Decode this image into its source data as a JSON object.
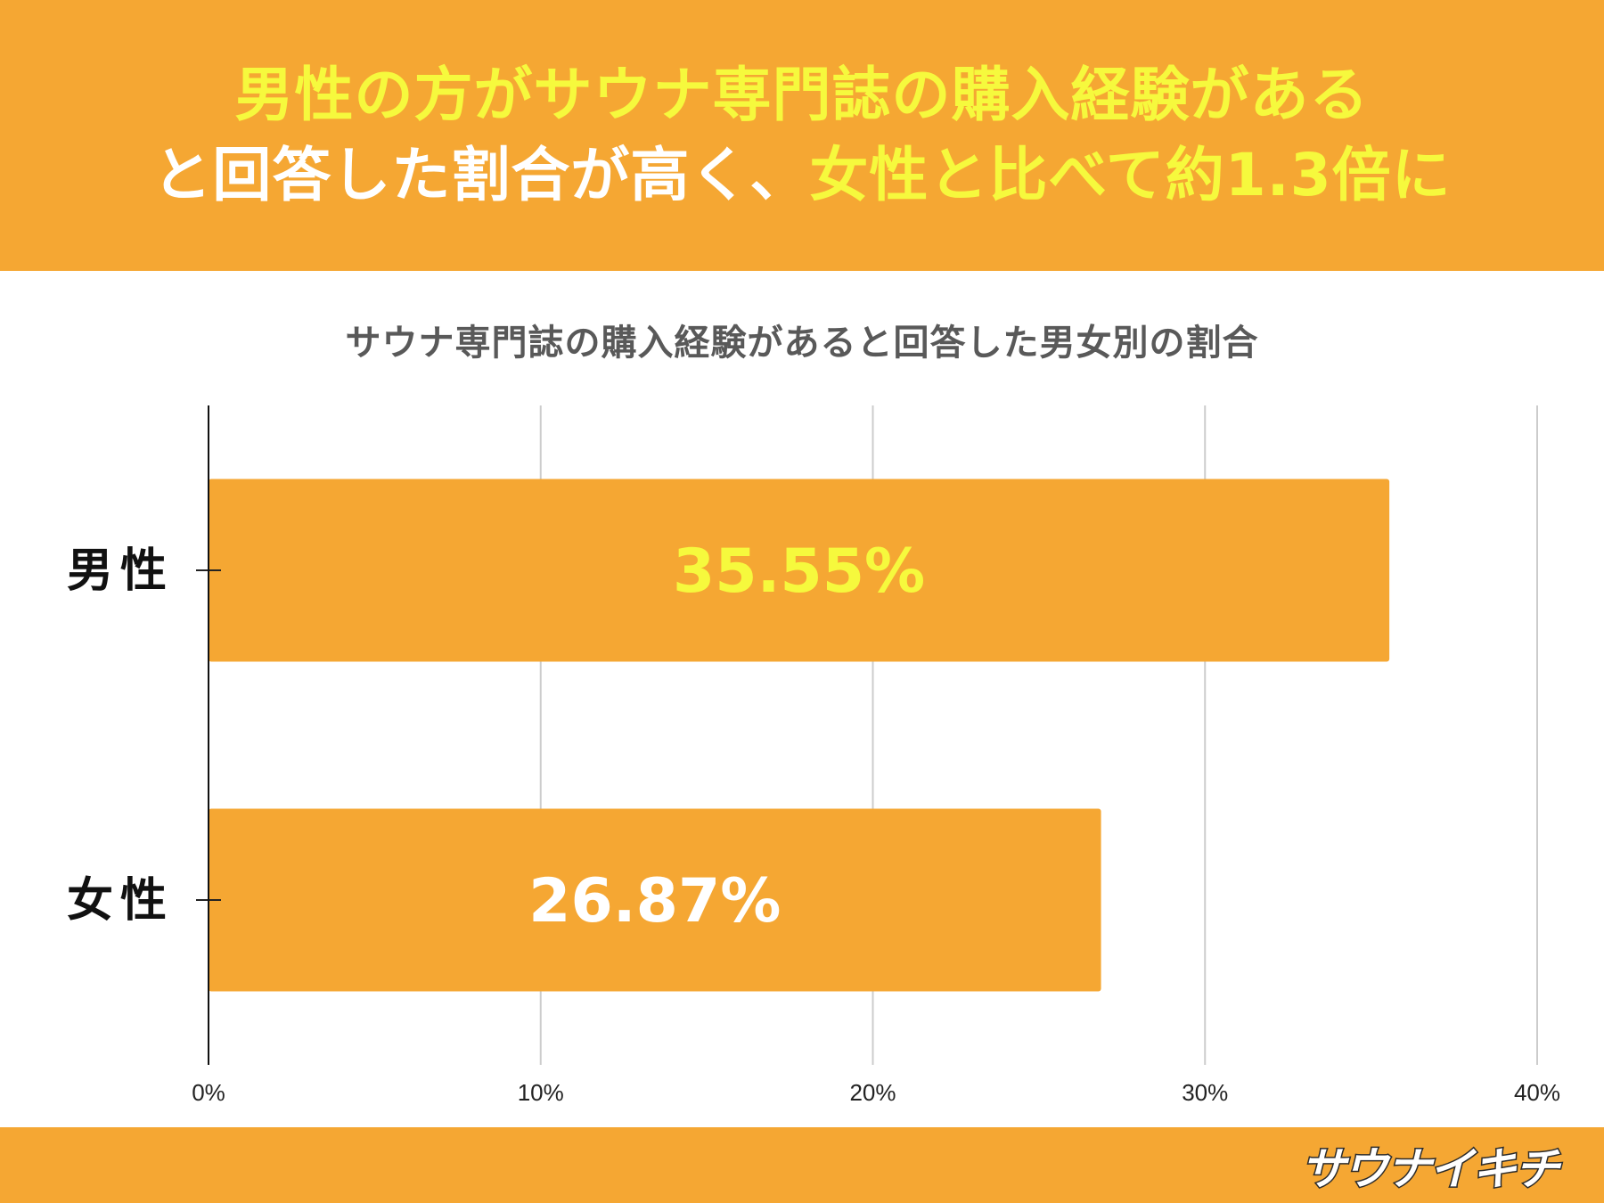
{
  "headline": {
    "line1": "男性の方がサウナ専門誌の購入経験がある",
    "line2_white": "と回答した割合が高く、",
    "line2_yellow": "女性と比べて約1.3倍に"
  },
  "chart_data": {
    "type": "bar",
    "orientation": "horizontal",
    "title": "サウナ専門誌の購入経験があると回答した男女別の割合",
    "categories": [
      "男性",
      "女性"
    ],
    "values": [
      35.55,
      26.87
    ],
    "data_labels": [
      "35.55%",
      "26.87%"
    ],
    "data_label_colors": [
      "#f6f93d",
      "#ffffff"
    ],
    "xlim": [
      0,
      40
    ],
    "x_ticks": [
      0,
      10,
      20,
      30,
      40
    ],
    "x_tick_labels": [
      "0%",
      "10%",
      "20%",
      "30%",
      "40%"
    ],
    "xlabel": "",
    "ylabel": "",
    "grid": true,
    "legend": "none",
    "bar_color": "#f5a733",
    "grid_color": "#cccccc"
  },
  "colors": {
    "accent": "#f5a733",
    "highlight_yellow": "#f6f93d",
    "title_gray": "#595959"
  },
  "logo": {
    "text": "サウナイキチ"
  }
}
